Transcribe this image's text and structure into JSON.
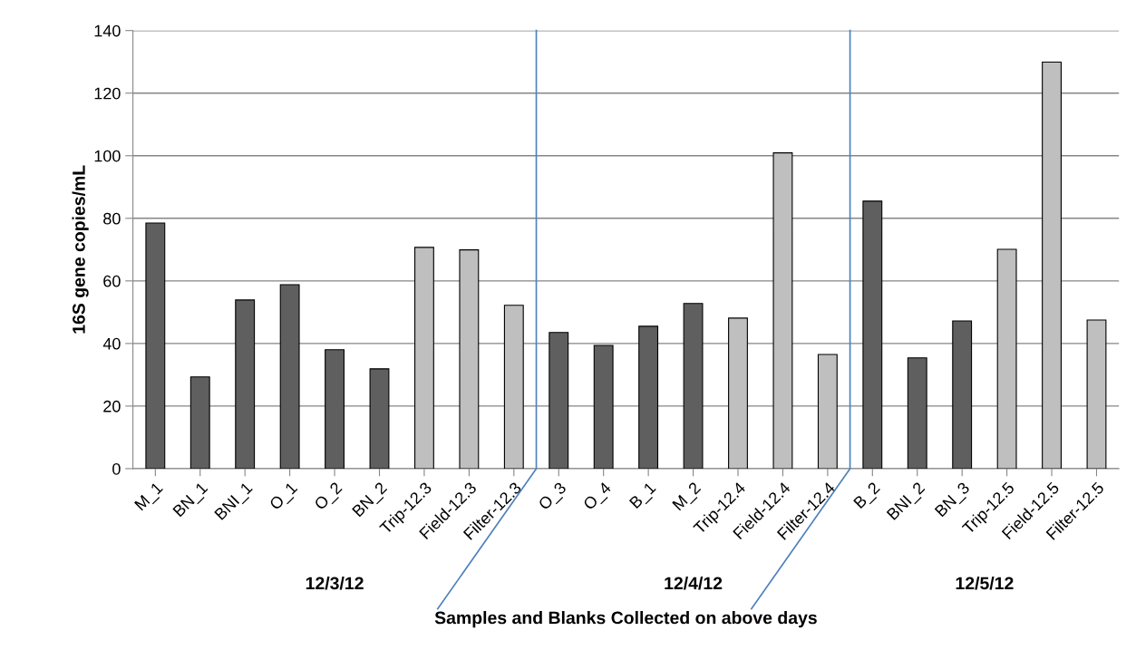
{
  "chart_data": {
    "type": "bar",
    "ylabel": "16S gene copies/mL",
    "xlabel": "Samples and Blanks Collected on above days",
    "categories": [
      "M_1",
      "BN_1",
      "BNI_1",
      "O_1",
      "O_2",
      "BN_2",
      "Trip-12.3",
      "Field-12.3",
      "Filter-12.3",
      "O_3",
      "O_4",
      "B_1",
      "M_2",
      "Trip-12.4",
      "Field-12.4",
      "Filter-12.4",
      "B_2",
      "BNI_2",
      "BN_3",
      "Trip-12.5",
      "Field-12.5",
      "Filter-12.5"
    ],
    "values": [
      78.5,
      29.3,
      53.9,
      58.8,
      38,
      31.9,
      70.7,
      69.9,
      52.2,
      43.5,
      39.4,
      45.5,
      52.8,
      48.1,
      100.9,
      36.5,
      85.5,
      35.4,
      47.2,
      70.1,
      129.9,
      47.5
    ],
    "colors": [
      "#5f5f5f",
      "#5f5f5f",
      "#5f5f5f",
      "#5f5f5f",
      "#5f5f5f",
      "#5f5f5f",
      "#bfbfbf",
      "#bfbfbf",
      "#bfbfbf",
      "#5f5f5f",
      "#5f5f5f",
      "#5f5f5f",
      "#5f5f5f",
      "#bfbfbf",
      "#bfbfbf",
      "#bfbfbf",
      "#5f5f5f",
      "#5f5f5f",
      "#5f5f5f",
      "#bfbfbf",
      "#bfbfbf",
      "#bfbfbf"
    ],
    "ylim": [
      0,
      140
    ],
    "yticks": [
      0,
      20,
      40,
      60,
      80,
      100,
      120,
      140
    ],
    "grid": "y",
    "annotations": [
      "12/3/12",
      "12/4/12",
      "12/5/12"
    ]
  }
}
